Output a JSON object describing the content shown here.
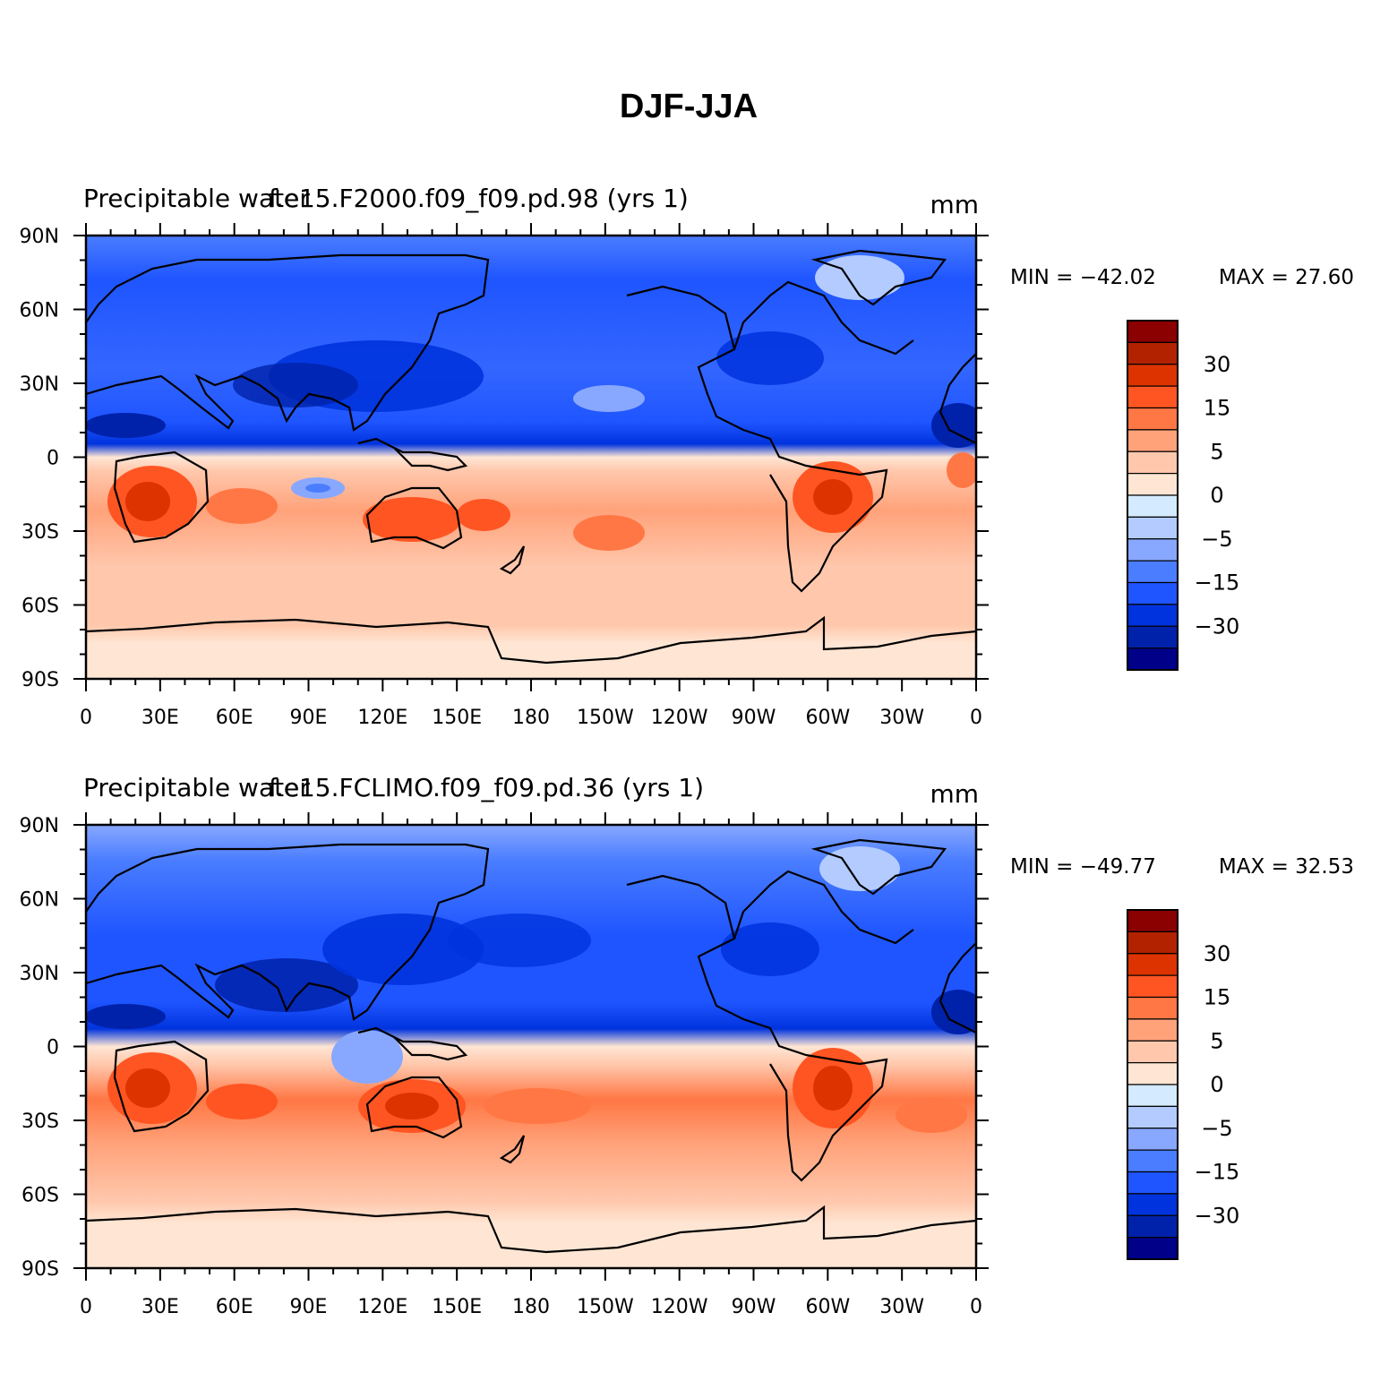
{
  "title": "DJF-JJA",
  "panels": [
    {
      "left_title": "Precipitable water",
      "center_title": "f.e15.F2000.f09_f09.pd.98 (yrs 1)",
      "units": "mm",
      "min_label": "MIN = −42.02",
      "max_label": "MAX = 27.60"
    },
    {
      "left_title": "Precipitable water",
      "center_title": "f.e15.FCLIMO.f09_f09.pd.36 (yrs 1)",
      "units": "mm",
      "min_label": "MIN = −49.77",
      "max_label": "MAX = 32.53"
    }
  ],
  "axes": {
    "lat_labels": [
      "90N",
      "60N",
      "30N",
      "0",
      "30S",
      "60S",
      "90S"
    ],
    "lon_labels": [
      "0",
      "30E",
      "60E",
      "90E",
      "120E",
      "150E",
      "180",
      "150W",
      "120W",
      "90W",
      "60W",
      "30W",
      "0"
    ]
  },
  "colorbar": {
    "colors": [
      "#8b0000",
      "#b22200",
      "#dd3300",
      "#ff5522",
      "#ff7744",
      "#ffa27a",
      "#ffc8ad",
      "#ffe6d4",
      "#d4eaff",
      "#b3cbff",
      "#88a8ff",
      "#4a7dff",
      "#1f55ff",
      "#0033dd",
      "#0022aa",
      "#000088"
    ],
    "tick_labels": [
      "30",
      "15",
      "5",
      "0",
      "−5",
      "−15",
      "−30"
    ]
  }
}
